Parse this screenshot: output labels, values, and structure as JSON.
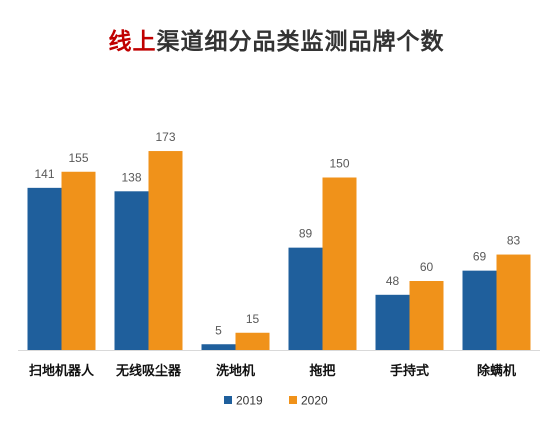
{
  "title": {
    "highlight": "线上",
    "rest": "渠道细分品类监测品牌个数"
  },
  "chart_data": {
    "type": "bar",
    "title": "线上渠道细分品类监测品牌个数",
    "categories": [
      "扫地机器人",
      "无线吸尘器",
      "洗地机",
      "拖把",
      "手持式",
      "除螨机"
    ],
    "series": [
      {
        "name": "2019",
        "color": "#1f5f9c",
        "values": [
          141,
          138,
          5,
          89,
          48,
          69
        ]
      },
      {
        "name": "2020",
        "color": "#f0921a",
        "values": [
          155,
          173,
          15,
          150,
          60,
          83
        ]
      }
    ],
    "ylim": [
      0,
      185
    ],
    "grid": false,
    "legend": "bottom"
  }
}
